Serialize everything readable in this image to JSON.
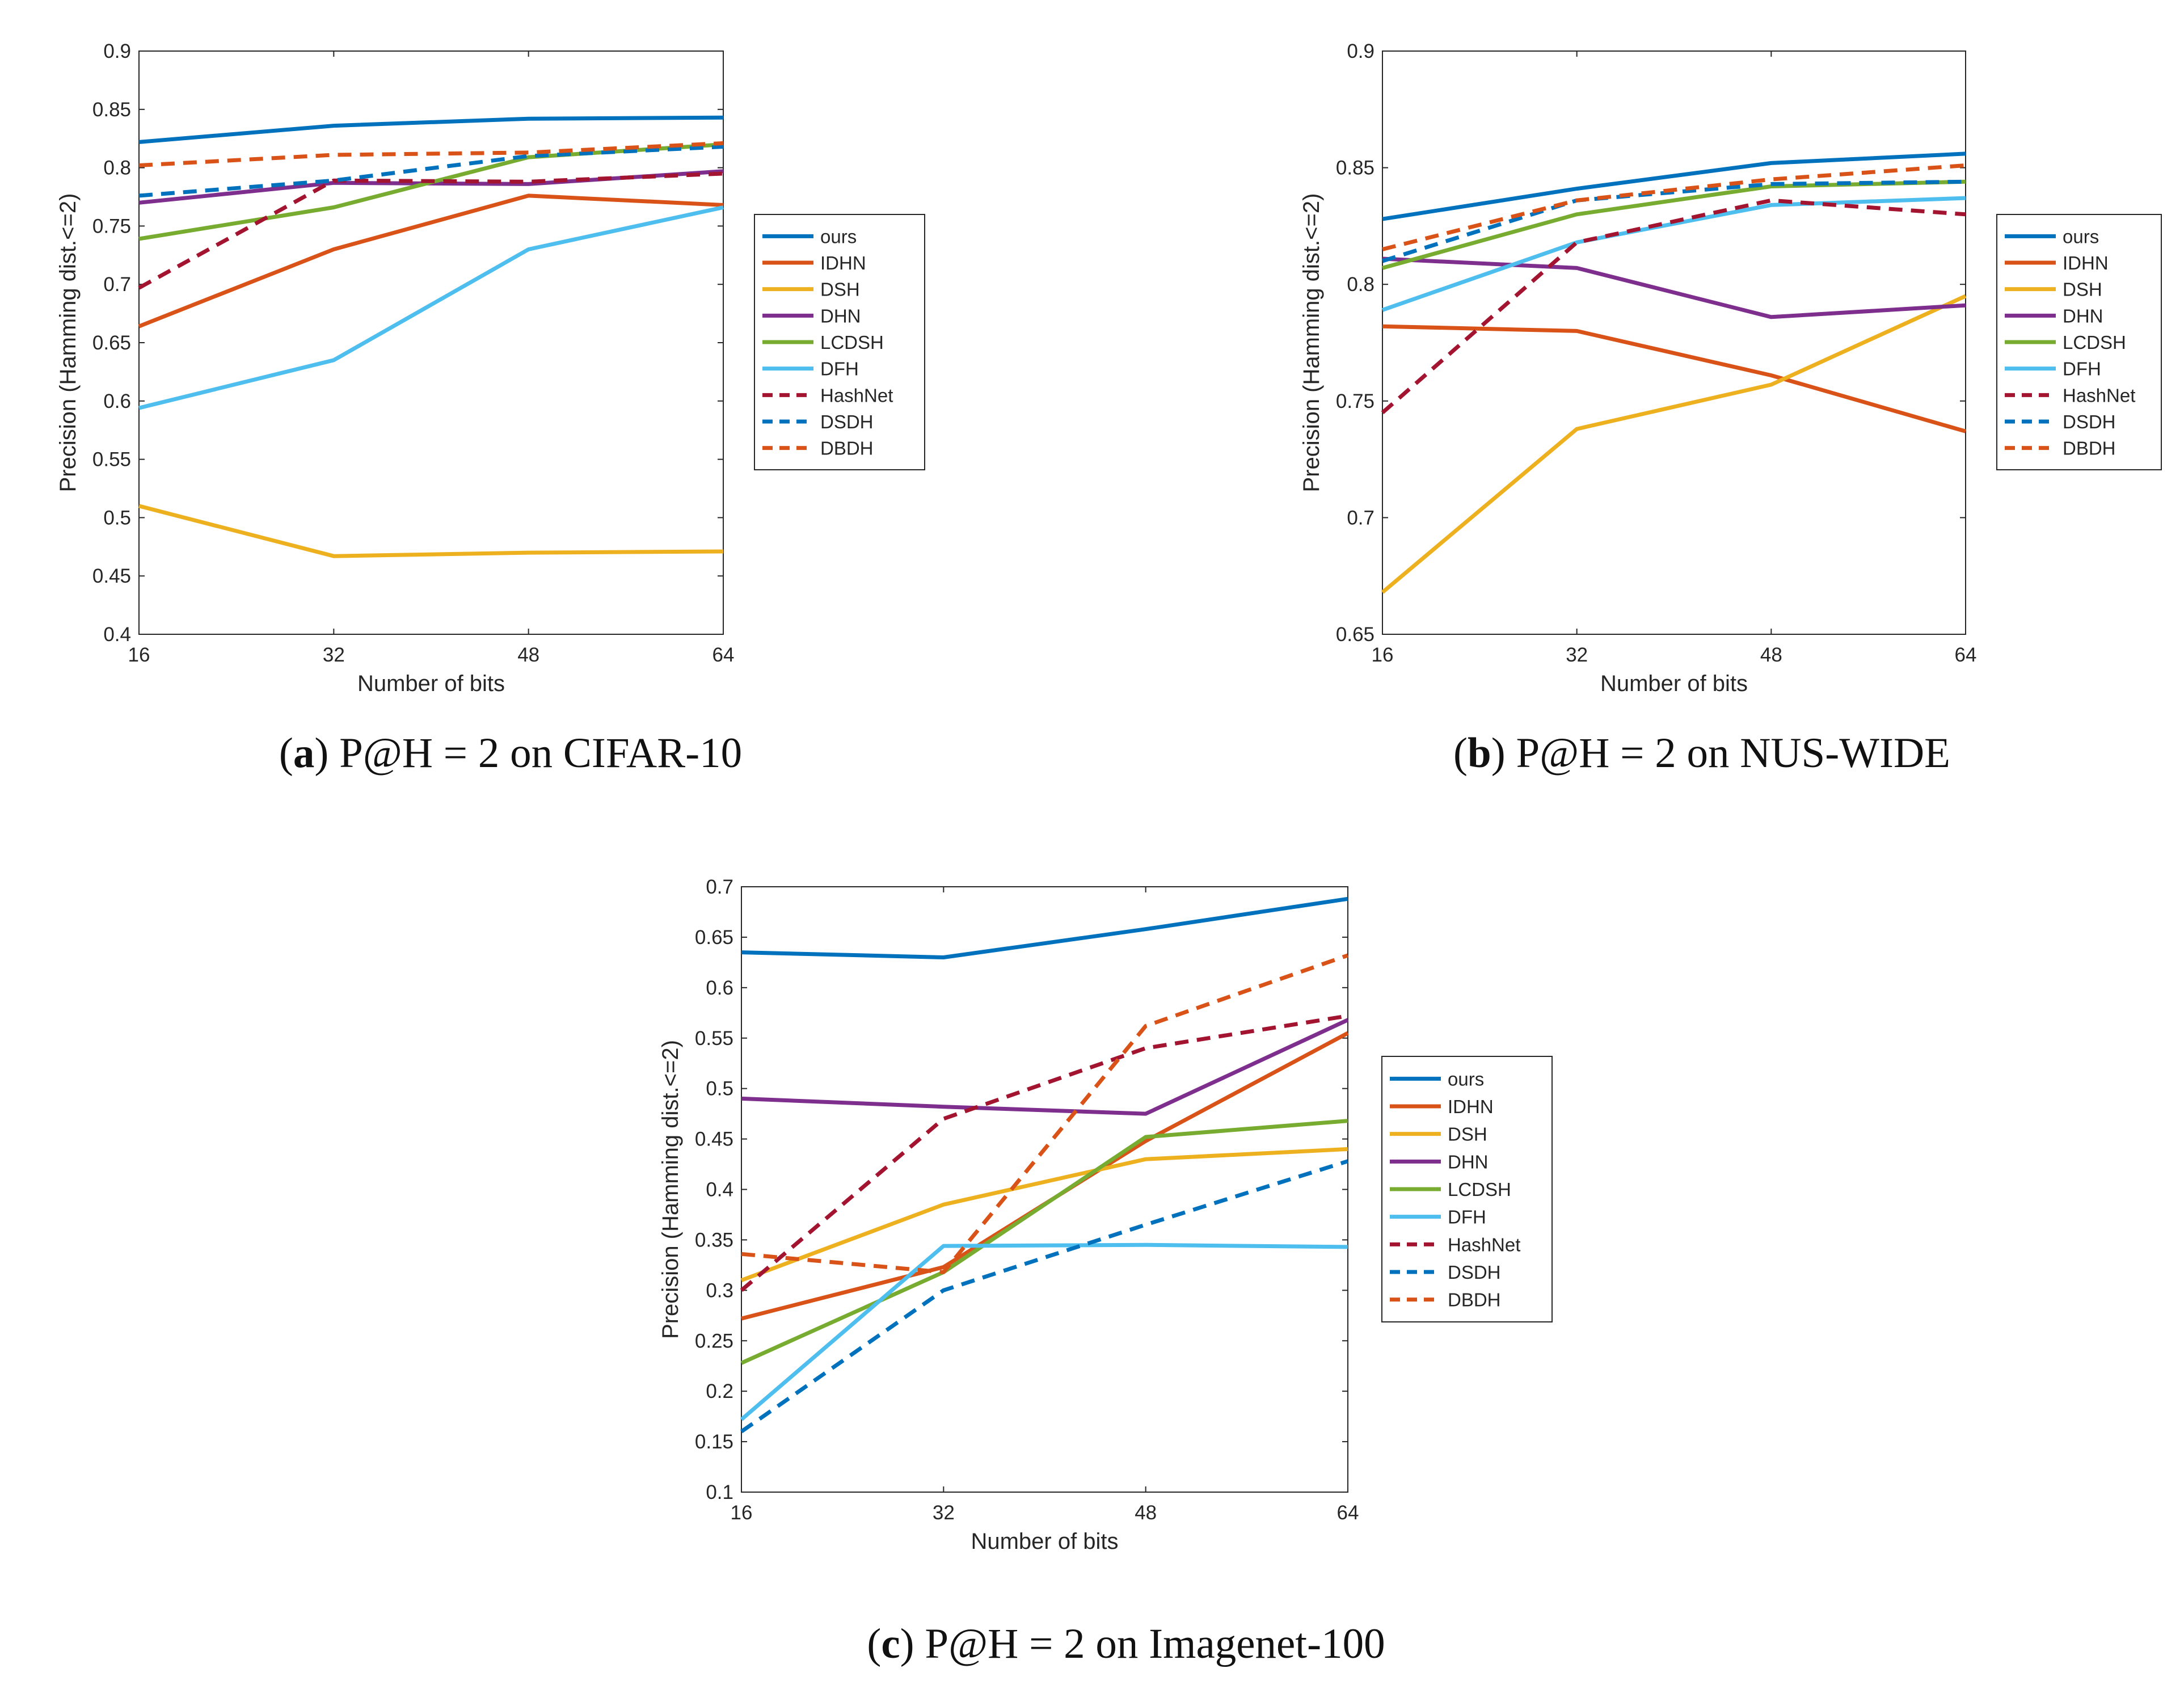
{
  "colors": {
    "ours": "#0072BD",
    "IDHN": "#D95319",
    "DSH": "#EDB120",
    "DHN": "#7E2F8E",
    "LCDSH": "#77AC30",
    "DFH": "#4DBEEE",
    "HashNet": "#A2142F",
    "DSDH": "#0072BD",
    "DBDH": "#D95319"
  },
  "chart_data": [
    {
      "type": "line",
      "panel": "a",
      "caption_letter": "a",
      "caption_text": "P@H = 2 on CIFAR-10",
      "xlabel": "Number of bits",
      "ylabel": "Precision (Hamming dist.<=2)",
      "x": [
        16,
        32,
        48,
        64
      ],
      "xticks": [
        "16",
        "32",
        "48",
        "64"
      ],
      "ylim": [
        0.4,
        0.9
      ],
      "yticks": [
        "0.4",
        "0.45",
        "0.5",
        "0.55",
        "0.6",
        "0.65",
        "0.7",
        "0.75",
        "0.8",
        "0.85",
        "0.9"
      ],
      "legend": "right",
      "series": [
        {
          "name": "ours",
          "style": "solid",
          "values": [
            0.822,
            0.836,
            0.842,
            0.843
          ]
        },
        {
          "name": "IDHN",
          "style": "solid",
          "values": [
            0.664,
            0.73,
            0.776,
            0.768
          ]
        },
        {
          "name": "DSH",
          "style": "solid",
          "values": [
            0.51,
            0.467,
            0.47,
            0.471
          ]
        },
        {
          "name": "DHN",
          "style": "solid",
          "values": [
            0.77,
            0.787,
            0.786,
            0.797
          ]
        },
        {
          "name": "LCDSH",
          "style": "solid",
          "values": [
            0.739,
            0.766,
            0.809,
            0.82
          ]
        },
        {
          "name": "DFH",
          "style": "solid",
          "values": [
            0.594,
            0.635,
            0.73,
            0.766
          ]
        },
        {
          "name": "HashNet",
          "style": "dashed",
          "values": [
            0.697,
            0.789,
            0.788,
            0.795
          ]
        },
        {
          "name": "DSDH",
          "style": "dashed",
          "values": [
            0.776,
            0.789,
            0.81,
            0.818
          ]
        },
        {
          "name": "DBDH",
          "style": "dashed",
          "values": [
            0.802,
            0.811,
            0.813,
            0.821
          ]
        }
      ]
    },
    {
      "type": "line",
      "panel": "b",
      "caption_letter": "b",
      "caption_text": "P@H = 2 on NUS-WIDE",
      "xlabel": "Number of bits",
      "ylabel": "Precision (Hamming dist.<=2)",
      "x": [
        16,
        32,
        48,
        64
      ],
      "xticks": [
        "16",
        "32",
        "48",
        "64"
      ],
      "ylim": [
        0.65,
        0.9
      ],
      "yticks": [
        "0.65",
        "0.7",
        "0.75",
        "0.8",
        "0.85",
        "0.9"
      ],
      "legend": "right",
      "series": [
        {
          "name": "ours",
          "style": "solid",
          "values": [
            0.828,
            0.841,
            0.852,
            0.856
          ]
        },
        {
          "name": "IDHN",
          "style": "solid",
          "values": [
            0.782,
            0.78,
            0.761,
            0.737
          ]
        },
        {
          "name": "DSH",
          "style": "solid",
          "values": [
            0.668,
            0.738,
            0.757,
            0.795
          ]
        },
        {
          "name": "DHN",
          "style": "solid",
          "values": [
            0.811,
            0.807,
            0.786,
            0.791
          ]
        },
        {
          "name": "LCDSH",
          "style": "solid",
          "values": [
            0.807,
            0.83,
            0.842,
            0.844
          ]
        },
        {
          "name": "DFH",
          "style": "solid",
          "values": [
            0.789,
            0.818,
            0.834,
            0.837
          ]
        },
        {
          "name": "HashNet",
          "style": "dashed",
          "values": [
            0.745,
            0.818,
            0.836,
            0.83
          ]
        },
        {
          "name": "DSDH",
          "style": "dashed",
          "values": [
            0.81,
            0.836,
            0.843,
            0.844
          ]
        },
        {
          "name": "DBDH",
          "style": "dashed",
          "values": [
            0.815,
            0.836,
            0.845,
            0.851
          ]
        }
      ]
    },
    {
      "type": "line",
      "panel": "c",
      "caption_letter": "c",
      "caption_text": "P@H = 2 on Imagenet-100",
      "xlabel": "Number of bits",
      "ylabel": "Precision (Hamming dist.<=2)",
      "x": [
        16,
        32,
        48,
        64
      ],
      "xticks": [
        "16",
        "32",
        "48",
        "64"
      ],
      "ylim": [
        0.1,
        0.7
      ],
      "yticks": [
        "0.1",
        "0.15",
        "0.2",
        "0.25",
        "0.3",
        "0.35",
        "0.4",
        "0.45",
        "0.5",
        "0.55",
        "0.6",
        "0.65",
        "0.7"
      ],
      "legend": "right",
      "series": [
        {
          "name": "ours",
          "style": "solid",
          "values": [
            0.635,
            0.63,
            0.658,
            0.688
          ]
        },
        {
          "name": "IDHN",
          "style": "solid",
          "values": [
            0.272,
            0.323,
            0.448,
            0.555
          ]
        },
        {
          "name": "DSH",
          "style": "solid",
          "values": [
            0.31,
            0.385,
            0.43,
            0.44
          ]
        },
        {
          "name": "DHN",
          "style": "solid",
          "values": [
            0.49,
            0.482,
            0.475,
            0.568
          ]
        },
        {
          "name": "LCDSH",
          "style": "solid",
          "values": [
            0.228,
            0.318,
            0.452,
            0.468
          ]
        },
        {
          "name": "DFH",
          "style": "solid",
          "values": [
            0.172,
            0.344,
            0.345,
            0.343
          ]
        },
        {
          "name": "HashNet",
          "style": "dashed",
          "values": [
            0.3,
            0.47,
            0.54,
            0.572
          ]
        },
        {
          "name": "DSDH",
          "style": "dashed",
          "values": [
            0.16,
            0.3,
            0.365,
            0.428
          ]
        },
        {
          "name": "DBDH",
          "style": "dashed",
          "values": [
            0.336,
            0.318,
            0.562,
            0.632
          ]
        }
      ]
    }
  ]
}
